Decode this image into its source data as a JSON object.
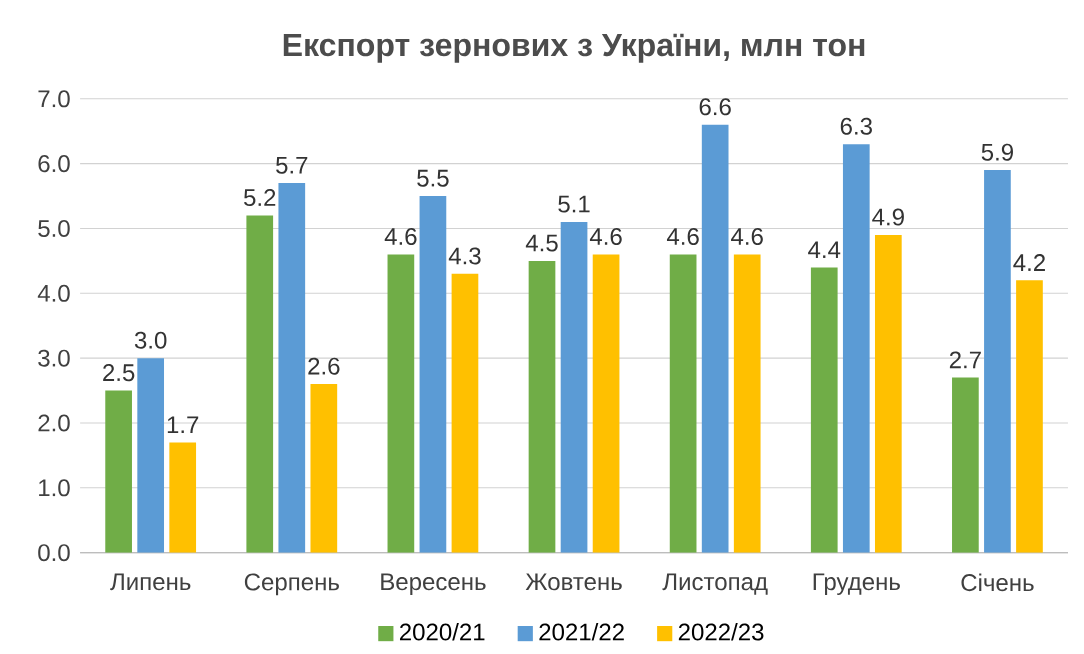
{
  "chart_data": {
    "type": "bar",
    "title": "Експорт зернових з України, млн тон",
    "categories": [
      "Липень",
      "Серпень",
      "Вересень",
      "Жовтень",
      "Листопад",
      "Грудень",
      "Січень"
    ],
    "series": [
      {
        "name": "2020/21",
        "color": "#70ad47",
        "values": [
          2.5,
          5.2,
          4.6,
          4.5,
          4.6,
          4.4,
          2.7
        ],
        "value_labels": [
          "2.5",
          "5.2",
          "4.6",
          "4.5",
          "4.6",
          "4.4",
          "2.7"
        ]
      },
      {
        "name": "2021/22",
        "color": "#5b9bd5",
        "values": [
          3.0,
          5.7,
          5.5,
          5.1,
          6.6,
          6.3,
          5.9
        ],
        "value_labels": [
          "3.0",
          "5.7",
          "5.5",
          "5.1",
          "6.6",
          "6.3",
          "5.9"
        ]
      },
      {
        "name": "2022/23",
        "color": "#ffc000",
        "values": [
          1.7,
          2.6,
          4.3,
          4.6,
          4.6,
          4.9,
          4.2
        ],
        "value_labels": [
          "1.7",
          "2.6",
          "4.3",
          "4.6",
          "4.6",
          "4.9",
          "4.2"
        ]
      }
    ],
    "ylim": [
      0,
      7
    ],
    "yticks": [
      {
        "value": 0,
        "label": "0.0"
      },
      {
        "value": 1,
        "label": "1.0"
      },
      {
        "value": 2,
        "label": "2.0"
      },
      {
        "value": 3,
        "label": "3.0"
      },
      {
        "value": 4,
        "label": "4.0"
      },
      {
        "value": 5,
        "label": "5.0"
      },
      {
        "value": 6,
        "label": "6.0"
      },
      {
        "value": 7,
        "label": "7.0"
      }
    ],
    "grid": "y",
    "legend": "bottom"
  }
}
